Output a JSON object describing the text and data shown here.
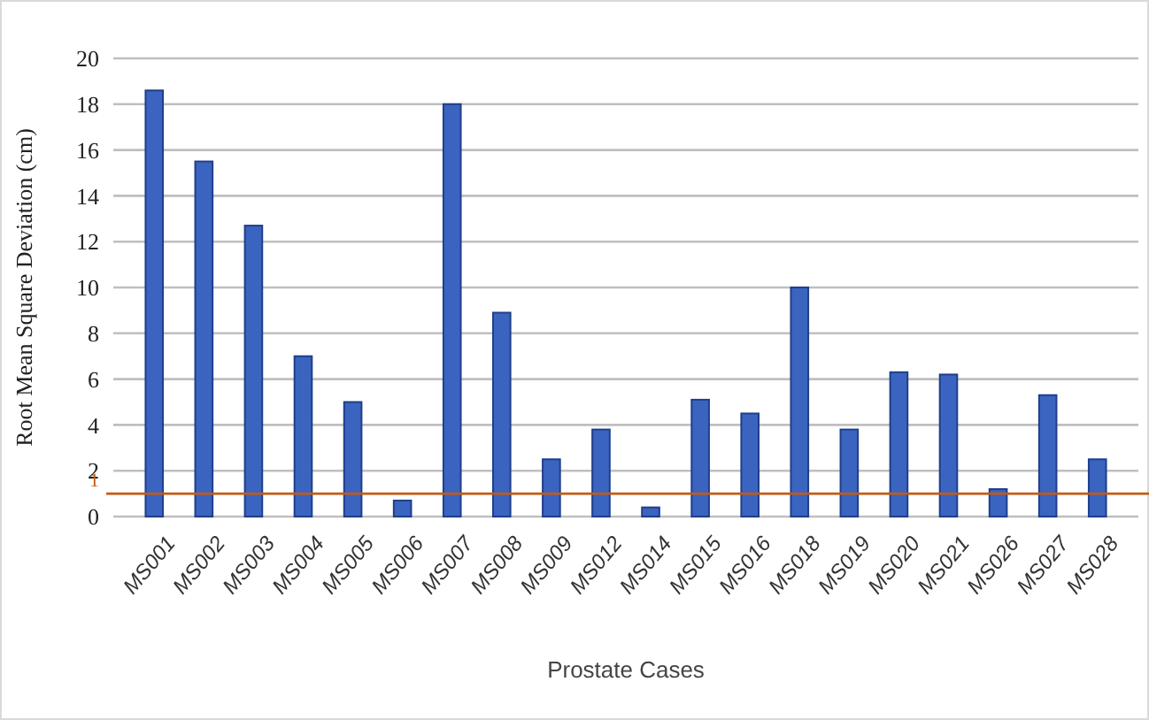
{
  "chart_data": {
    "type": "bar",
    "xlabel": "Prostate Cases",
    "ylabel": "Root Mean Square Deviation (cm)",
    "categories": [
      "MS001",
      "MS002",
      "MS003",
      "MS004",
      "MS005",
      "MS006",
      "MS007",
      "MS008",
      "MS009",
      "MS012",
      "MS014",
      "MS015",
      "MS016",
      "MS018",
      "MS019",
      "MS020",
      "MS021",
      "MS026",
      "MS027",
      "MS028"
    ],
    "values": [
      18.6,
      15.5,
      12.7,
      7.0,
      5.0,
      0.7,
      18.0,
      8.9,
      2.5,
      3.8,
      0.4,
      5.1,
      4.5,
      10.0,
      3.8,
      6.3,
      6.2,
      1.2,
      5.3,
      2.5
    ],
    "color": "#3a64c0",
    "ylim": [
      0,
      20
    ],
    "yticks": [
      0,
      2,
      4,
      6,
      8,
      10,
      12,
      14,
      16,
      18,
      20
    ],
    "grid": "y",
    "ref_lines": [
      {
        "axis": "y",
        "value": 1,
        "label": "1",
        "color": "#c55a11"
      }
    ]
  }
}
